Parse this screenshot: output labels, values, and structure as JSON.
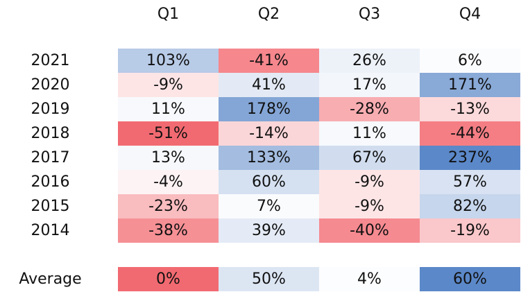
{
  "chart_data": {
    "type": "heatmap",
    "columns": [
      "Q1",
      "Q2",
      "Q3",
      "Q4"
    ],
    "rows": [
      {
        "label": "2021",
        "values": [
          103,
          -41,
          26,
          6
        ],
        "texts": [
          "103%",
          "-41%",
          "26%",
          "6%"
        ]
      },
      {
        "label": "2020",
        "values": [
          -9,
          41,
          17,
          171
        ],
        "texts": [
          "-9%",
          "41%",
          "17%",
          "171%"
        ]
      },
      {
        "label": "2019",
        "values": [
          11,
          178,
          -28,
          -13
        ],
        "texts": [
          "11%",
          "178%",
          "-28%",
          "-13%"
        ]
      },
      {
        "label": "2018",
        "values": [
          -51,
          -14,
          11,
          -44
        ],
        "texts": [
          "-51%",
          "-14%",
          "11%",
          "-44%"
        ]
      },
      {
        "label": "2017",
        "values": [
          13,
          133,
          67,
          237
        ],
        "texts": [
          "13%",
          "133%",
          "67%",
          "237%"
        ]
      },
      {
        "label": "2016",
        "values": [
          -4,
          60,
          -9,
          57
        ],
        "texts": [
          "-4%",
          "60%",
          "-9%",
          "57%"
        ]
      },
      {
        "label": "2015",
        "values": [
          -23,
          7,
          -9,
          82
        ],
        "texts": [
          "-23%",
          "7%",
          "-9%",
          "82%"
        ]
      },
      {
        "label": "2014",
        "values": [
          -38,
          39,
          -40,
          -19
        ],
        "texts": [
          "-38%",
          "39%",
          "-40%",
          "-19%"
        ]
      }
    ],
    "average": {
      "label": "Average",
      "values": [
        0,
        50,
        4,
        60
      ],
      "texts": [
        "0%",
        "50%",
        "4%",
        "60%"
      ]
    },
    "colors": {
      "negative": "#f26a71",
      "positive": "#5b88c8",
      "neutral": "#ffffff"
    },
    "scale": {
      "negative_full": -51,
      "positive_full": 237
    }
  }
}
